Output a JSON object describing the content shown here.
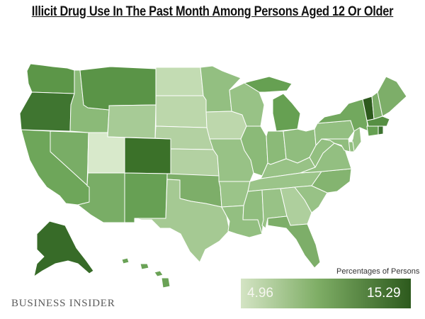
{
  "header": {
    "title": "Illicit Drug Use In The Past Month Among Persons Aged 12 Or Older"
  },
  "legend": {
    "title": "Percentages of Persons",
    "min_label": "4.96",
    "max_label": "15.29",
    "color_low": "#d4e4c4",
    "color_high": "#2d5a1d"
  },
  "brand": {
    "name": "BUSINESS INSIDER"
  },
  "map": {
    "type": "choropleth",
    "region": "United States",
    "states": [
      {
        "id": "WA",
        "level": 0.66,
        "color": "#5c9648"
      },
      {
        "id": "OR",
        "level": 0.82,
        "color": "#3f7530"
      },
      {
        "id": "CA",
        "level": 0.56,
        "color": "#6ea65a"
      },
      {
        "id": "NV",
        "level": 0.52,
        "color": "#79ad66"
      },
      {
        "id": "ID",
        "level": 0.45,
        "color": "#8bba78"
      },
      {
        "id": "MT",
        "level": 0.68,
        "color": "#5a9447"
      },
      {
        "id": "WY",
        "level": 0.3,
        "color": "#a7cb96"
      },
      {
        "id": "UT",
        "level": 0.05,
        "color": "#d8e9cb"
      },
      {
        "id": "CO",
        "level": 0.84,
        "color": "#3b7129"
      },
      {
        "id": "AZ",
        "level": 0.52,
        "color": "#79ad66"
      },
      {
        "id": "NM",
        "level": 0.6,
        "color": "#67a054"
      },
      {
        "id": "ND",
        "level": 0.15,
        "color": "#c3dcb3"
      },
      {
        "id": "SD",
        "level": 0.18,
        "color": "#bcd7ab"
      },
      {
        "id": "NE",
        "level": 0.22,
        "color": "#b3d1a2"
      },
      {
        "id": "KS",
        "level": 0.22,
        "color": "#b3d1a2"
      },
      {
        "id": "OK",
        "level": 0.5,
        "color": "#7dae69"
      },
      {
        "id": "TX",
        "level": 0.3,
        "color": "#a5c993"
      },
      {
        "id": "MN",
        "level": 0.4,
        "color": "#93bf81"
      },
      {
        "id": "IA",
        "level": 0.18,
        "color": "#bdd7ac"
      },
      {
        "id": "MO",
        "level": 0.38,
        "color": "#98c286"
      },
      {
        "id": "AR",
        "level": 0.36,
        "color": "#9bc489"
      },
      {
        "id": "LA",
        "level": 0.4,
        "color": "#93bf81"
      },
      {
        "id": "WI",
        "level": 0.38,
        "color": "#98c286"
      },
      {
        "id": "IL",
        "level": 0.45,
        "color": "#8bba78"
      },
      {
        "id": "MI",
        "level": 0.6,
        "color": "#66a052"
      },
      {
        "id": "IN",
        "level": 0.45,
        "color": "#8bba78"
      },
      {
        "id": "OH",
        "level": 0.42,
        "color": "#90bd7e"
      },
      {
        "id": "KY",
        "level": 0.38,
        "color": "#98c286"
      },
      {
        "id": "TN",
        "level": 0.36,
        "color": "#9bc489"
      },
      {
        "id": "MS",
        "level": 0.42,
        "color": "#90bd7e"
      },
      {
        "id": "AL",
        "level": 0.38,
        "color": "#98c286"
      },
      {
        "id": "GA",
        "level": 0.26,
        "color": "#aecf9d"
      },
      {
        "id": "FL",
        "level": 0.5,
        "color": "#7dae69"
      },
      {
        "id": "SC",
        "level": 0.38,
        "color": "#98c286"
      },
      {
        "id": "NC",
        "level": 0.48,
        "color": "#84b470"
      },
      {
        "id": "VA",
        "level": 0.4,
        "color": "#93bf81"
      },
      {
        "id": "WV",
        "level": 0.4,
        "color": "#93bf81"
      },
      {
        "id": "PA",
        "level": 0.4,
        "color": "#93bf81"
      },
      {
        "id": "NY",
        "level": 0.55,
        "color": "#72a85e"
      },
      {
        "id": "VT",
        "level": 1.0,
        "color": "#2d5a1d"
      },
      {
        "id": "NH",
        "level": 0.5,
        "color": "#7dae69"
      },
      {
        "id": "ME",
        "level": 0.5,
        "color": "#7dae69"
      },
      {
        "id": "MA",
        "level": 0.7,
        "color": "#568f43"
      },
      {
        "id": "RI",
        "level": 0.82,
        "color": "#3d7330"
      },
      {
        "id": "CT",
        "level": 0.6,
        "color": "#66a052"
      },
      {
        "id": "NJ",
        "level": 0.38,
        "color": "#98c286"
      },
      {
        "id": "DE",
        "level": 0.4,
        "color": "#93bf81"
      },
      {
        "id": "MD",
        "level": 0.42,
        "color": "#90bd7e"
      },
      {
        "id": "AK",
        "level": 0.86,
        "color": "#376b28"
      },
      {
        "id": "HI",
        "level": 0.58,
        "color": "#6aa256"
      }
    ]
  }
}
